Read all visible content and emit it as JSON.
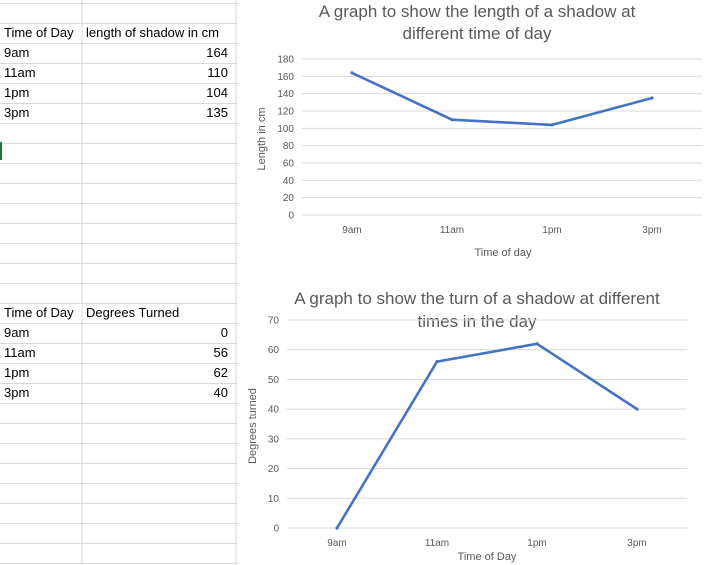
{
  "sheet": {
    "table1": {
      "headers": [
        "Time of Day",
        "length of shadow in cm"
      ],
      "rows": [
        {
          "time": "9am",
          "value": "164"
        },
        {
          "time": "11am",
          "value": "110"
        },
        {
          "time": "1pm",
          "value": "104"
        },
        {
          "time": "3pm",
          "value": "135"
        }
      ]
    },
    "table2": {
      "headers": [
        "Time of Day",
        "Degrees Turned"
      ],
      "rows": [
        {
          "time": "9am",
          "value": "0"
        },
        {
          "time": "11am",
          "value": "56"
        },
        {
          "time": "1pm",
          "value": "62"
        },
        {
          "time": "3pm",
          "value": "40"
        }
      ]
    }
  },
  "chart_data": [
    {
      "type": "line",
      "title_lines": [
        "A graph to show the length of a shadow at",
        "different time of day"
      ],
      "xlabel": "Time of day",
      "ylabel": "Length in cm",
      "categories": [
        "9am",
        "11am",
        "1pm",
        "3pm"
      ],
      "series": [
        {
          "values": [
            164,
            110,
            104,
            135
          ],
          "color": "#4472c4"
        }
      ],
      "yticks": [
        0,
        20,
        40,
        60,
        80,
        100,
        120,
        140,
        160,
        180
      ],
      "ylim": [
        0,
        180
      ],
      "grid": true
    },
    {
      "type": "line",
      "title_lines": [
        "A graph to show the turn of a shadow at different",
        "times in the day"
      ],
      "xlabel": "Time of Day",
      "ylabel": "Degrees turned",
      "categories": [
        "9am",
        "11am",
        "1pm",
        "3pm"
      ],
      "series": [
        {
          "values": [
            0,
            56,
            62,
            40
          ],
          "color": "#4472c4"
        }
      ],
      "yticks": [
        0,
        10,
        20,
        30,
        40,
        50,
        60,
        70
      ],
      "ylim": [
        0,
        70
      ],
      "grid": true
    }
  ]
}
